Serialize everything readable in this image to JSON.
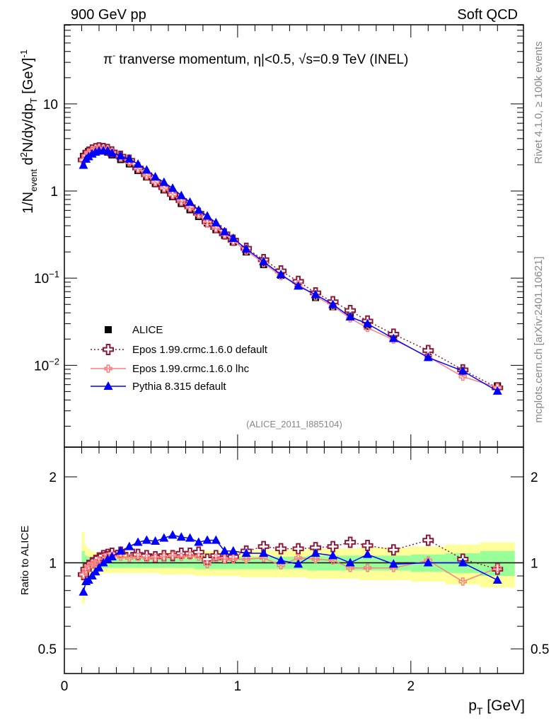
{
  "header": {
    "left": "900 GeV pp",
    "right": "Soft QCD"
  },
  "side_texts": {
    "rivet": "Rivet 4.1.0, ≥ 100k events",
    "mcplots": "mcplots.cern.ch [arXiv:2401.10621]"
  },
  "analysis_id": "(ALICE_2011_I885104)",
  "colors": {
    "alice": "#000000",
    "epos_default": "#8b1a3a",
    "epos_lhc": "#ff7f7f",
    "pythia": "#0000ff",
    "band_total": "#ffff99",
    "band_stat": "#99ff99"
  },
  "chart_data": [
    {
      "type": "scatter",
      "panel": "main",
      "title": {
        "pi": "π",
        "sup": "-",
        "rest": " tranverse momentum, η|<0.5, √s=0.9 TeV (INEL)"
      },
      "ylabel": {
        "a": "1/N",
        "a_sub": "event",
        "b": " d",
        "b_sup": "2",
        "c": "N/dy/dp",
        "c_sub": "T",
        "d": " [GeV]",
        "d_sup": "-1"
      },
      "yscale": "log",
      "ylim": [
        0.00115,
        81
      ],
      "xlim": [
        0,
        2.65
      ],
      "ytick_labels": [
        {
          "v": 10,
          "base": "10",
          "exp": ""
        },
        {
          "v": 1,
          "base": "1",
          "exp": ""
        },
        {
          "v": 0.1,
          "base": "10",
          "exp": "−1"
        },
        {
          "v": 0.01,
          "base": "10",
          "exp": "−2"
        }
      ],
      "legend": {
        "placement": "bottom-left",
        "entries": [
          "ALICE",
          "Epos 1.99.crmc.1.6.0 default",
          "Epos 1.99.crmc.1.6.0 lhc",
          "Pythia 8.315 default"
        ]
      },
      "x": [
        0.11,
        0.125,
        0.14,
        0.16,
        0.18,
        0.2,
        0.225,
        0.25,
        0.275,
        0.325,
        0.375,
        0.425,
        0.475,
        0.525,
        0.575,
        0.625,
        0.675,
        0.725,
        0.775,
        0.825,
        0.875,
        0.925,
        0.975,
        1.05,
        1.15,
        1.25,
        1.35,
        1.45,
        1.55,
        1.65,
        1.75,
        1.9,
        2.1,
        2.3,
        2.5
      ],
      "alice": [
        2.5,
        2.7,
        2.85,
        2.95,
        3.0,
        3.0,
        2.9,
        2.8,
        2.6,
        2.3,
        2.05,
        1.72,
        1.45,
        1.22,
        1.03,
        0.86,
        0.72,
        0.61,
        0.51,
        0.43,
        0.36,
        0.31,
        0.26,
        0.2,
        0.143,
        0.108,
        0.082,
        0.06,
        0.047,
        0.036,
        0.028,
        0.0205,
        0.0123,
        0.0086,
        0.0058
      ]
    },
    {
      "type": "line",
      "panel": "ratio",
      "ylabel": "Ratio to ALICE",
      "xlabel": {
        "p": "p",
        "sub": "T",
        "rest": " [GeV]"
      },
      "yscale": "log",
      "ylim": [
        0.41,
        2.54
      ],
      "xlim": [
        0,
        2.65
      ],
      "ytick_labels": [
        {
          "v": 2,
          "label": "2"
        },
        {
          "v": 1,
          "label": "1"
        },
        {
          "v": 0.5,
          "label": "0.5"
        }
      ],
      "xtick_labels": [
        {
          "v": 0,
          "label": "0"
        },
        {
          "v": 1,
          "label": "1"
        },
        {
          "v": 2,
          "label": "2"
        }
      ],
      "band_total_halfwidth": [
        0.28,
        0.15,
        0.12,
        0.1,
        0.09,
        0.09,
        0.08,
        0.08,
        0.08,
        0.08,
        0.08,
        0.08,
        0.08,
        0.08,
        0.09,
        0.09,
        0.09,
        0.09,
        0.1,
        0.1,
        0.1,
        0.1,
        0.1,
        0.11,
        0.11,
        0.11,
        0.11,
        0.12,
        0.12,
        0.12,
        0.13,
        0.13,
        0.14,
        0.16,
        0.18
      ],
      "band_stat_halfwidth": [
        0.1,
        0.06,
        0.05,
        0.05,
        0.05,
        0.05,
        0.04,
        0.04,
        0.04,
        0.04,
        0.04,
        0.04,
        0.04,
        0.04,
        0.04,
        0.04,
        0.04,
        0.04,
        0.05,
        0.05,
        0.05,
        0.05,
        0.05,
        0.05,
        0.05,
        0.05,
        0.05,
        0.06,
        0.06,
        0.06,
        0.06,
        0.06,
        0.07,
        0.08,
        0.1
      ],
      "series": [
        {
          "name": "Epos 1.99.crmc.1.6.0 default",
          "ratio": [
            0.91,
            0.95,
            0.98,
            1.0,
            1.02,
            1.04,
            1.06,
            1.07,
            1.08,
            1.09,
            1.1,
            1.07,
            1.06,
            1.05,
            1.06,
            1.06,
            1.08,
            1.08,
            1.09,
            1.03,
            1.06,
            1.04,
            1.05,
            1.1,
            1.14,
            1.12,
            1.12,
            1.13,
            1.14,
            1.18,
            1.15,
            1.11,
            1.2,
            1.03,
            0.95
          ]
        },
        {
          "name": "Epos 1.99.crmc.1.6.0 lhc",
          "ratio": [
            0.91,
            0.94,
            0.97,
            0.99,
            1.0,
            1.02,
            1.04,
            1.05,
            1.06,
            1.05,
            1.04,
            1.05,
            1.04,
            1.04,
            1.05,
            1.06,
            1.05,
            1.06,
            1.05,
            0.99,
            1.04,
            1.03,
            1.03,
            1.03,
            1.04,
            0.98,
            1.04,
            1.03,
            1.02,
            0.96,
            0.96,
            0.96,
            1.02,
            0.86,
            0.96
          ]
        },
        {
          "name": "Pythia 8.315 default",
          "ratio": [
            0.79,
            0.86,
            0.87,
            0.9,
            0.93,
            0.96,
            1.0,
            1.03,
            1.05,
            1.1,
            1.14,
            1.18,
            1.2,
            1.19,
            1.22,
            1.25,
            1.23,
            1.22,
            1.18,
            1.2,
            1.2,
            1.1,
            1.1,
            1.08,
            1.08,
            1.02,
            0.99,
            1.08,
            1.06,
            1.0,
            1.07,
            0.99,
            1.0,
            1.0,
            0.87
          ]
        }
      ]
    }
  ]
}
